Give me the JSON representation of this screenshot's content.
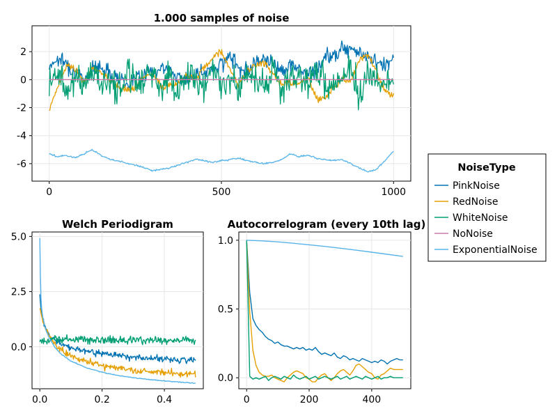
{
  "colors": {
    "PinkNoise": "#0072b2",
    "RedNoise": "#e69f00",
    "WhiteNoise": "#009e73",
    "NoNoise": "#cc79a7",
    "ExponentialNoise": "#56b4e9"
  },
  "legend": {
    "title": "NoiseType",
    "entries": [
      "PinkNoise",
      "RedNoise",
      "WhiteNoise",
      "NoNoise",
      "ExponentialNoise"
    ]
  },
  "chart_data": [
    {
      "type": "line",
      "title": "1.000 samples of noise",
      "xlabel": "",
      "ylabel": "",
      "xlim": [
        -50,
        1050
      ],
      "ylim": [
        -7.25,
        3.85
      ],
      "xticks": [
        0,
        500,
        1000
      ],
      "xtick_labels": [
        "0",
        "500",
        "1000"
      ],
      "yticks": [
        -6,
        -4,
        -2,
        0,
        2
      ],
      "ytick_labels": [
        "-6",
        "-4",
        "-2",
        "0",
        "2"
      ],
      "grid": true,
      "series": [
        {
          "name": "PinkNoise",
          "x_step": 25,
          "values": [
            1.0,
            1.5,
            1.2,
            0.5,
            0.0,
            0.8,
            0.9,
            0.6,
            0.2,
            -0.3,
            0.1,
            0.4,
            0.6,
            0.8,
            0.7,
            0.2,
            0.0,
            0.3,
            0.5,
            0.8,
            1.2,
            1.6,
            1.0,
            0.6,
            1.4,
            1.5,
            1.2,
            0.7,
            1.0,
            0.8,
            0.4,
            0.6,
            1.6,
            1.8,
            2.2,
            2.4,
            2.0,
            1.5,
            1.3,
            1.0,
            1.5
          ]
        },
        {
          "name": "RedNoise",
          "x_step": 25,
          "values": [
            -2.2,
            -0.5,
            1.0,
            0.8,
            -0.2,
            0.8,
            0.5,
            0.0,
            -0.5,
            -0.8,
            -0.5,
            0.2,
            0.4,
            -0.6,
            -0.4,
            -0.2,
            0.3,
            0.1,
            0.8,
            1.6,
            2.0,
            0.8,
            -0.4,
            0.6,
            1.0,
            1.2,
            0.5,
            -0.4,
            -0.2,
            -0.3,
            0.2,
            -1.3,
            -1.4,
            -0.5,
            0.1,
            -0.2,
            1.4,
            1.8,
            0.6,
            -0.8,
            -1.2
          ]
        },
        {
          "name": "WhiteNoise",
          "x_step": 25,
          "values": [
            0.0,
            0.6,
            -0.8,
            0.3,
            -0.4,
            0.9,
            -0.6,
            0.2,
            -1.0,
            0.5,
            0.0,
            -0.3,
            0.7,
            -0.5,
            0.2,
            -0.8,
            0.4,
            0.1,
            -0.6,
            0.8,
            -0.2,
            0.3,
            -0.7,
            0.5,
            0.0,
            -0.4,
            0.6,
            -0.9,
            0.2,
            0.4,
            -0.3,
            0.7,
            -0.5,
            0.1,
            -0.2,
            0.6,
            -0.8,
            0.3,
            0.0,
            -0.4,
            0.2
          ]
        },
        {
          "name": "NoNoise",
          "x_step": 1000,
          "values": [
            0,
            0
          ]
        },
        {
          "name": "ExponentialNoise",
          "x_step": 25,
          "values": [
            -5.3,
            -5.5,
            -5.4,
            -5.6,
            -5.3,
            -5.0,
            -5.4,
            -5.7,
            -5.8,
            -6.0,
            -6.1,
            -6.3,
            -6.5,
            -6.4,
            -6.3,
            -6.1,
            -5.9,
            -5.7,
            -5.8,
            -5.9,
            -5.8,
            -5.7,
            -5.6,
            -5.8,
            -5.9,
            -6.0,
            -5.9,
            -5.7,
            -5.3,
            -5.5,
            -5.4,
            -5.6,
            -5.7,
            -5.8,
            -5.7,
            -6.0,
            -6.3,
            -6.6,
            -6.4,
            -5.8,
            -5.1
          ]
        }
      ]
    },
    {
      "type": "line",
      "title": "Welch Periodigram",
      "xlabel": "",
      "ylabel": "",
      "xlim": [
        -0.025,
        0.525
      ],
      "ylim": [
        -1.9,
        5.2
      ],
      "xticks": [
        0.0,
        0.2,
        0.4
      ],
      "xtick_labels": [
        "0.0",
        "0.2",
        "0.4"
      ],
      "yticks": [
        0.0,
        2.5,
        5.0
      ],
      "ytick_labels": [
        "0.0",
        "2.5",
        "5.0"
      ],
      "grid": true,
      "series": [
        {
          "name": "PinkNoise",
          "x": [
            0.0,
            0.005,
            0.01,
            0.02,
            0.03,
            0.05,
            0.07,
            0.1,
            0.15,
            0.2,
            0.25,
            0.3,
            0.35,
            0.4,
            0.45,
            0.5
          ],
          "values": [
            2.3,
            1.6,
            1.2,
            0.8,
            0.5,
            0.3,
            0.1,
            -0.05,
            -0.2,
            -0.3,
            -0.38,
            -0.44,
            -0.5,
            -0.55,
            -0.58,
            -0.6
          ]
        },
        {
          "name": "RedNoise",
          "x": [
            0.0,
            0.005,
            0.01,
            0.02,
            0.03,
            0.05,
            0.07,
            0.1,
            0.15,
            0.2,
            0.25,
            0.3,
            0.35,
            0.4,
            0.45,
            0.5
          ],
          "values": [
            1.8,
            1.4,
            1.1,
            0.8,
            0.5,
            0.1,
            -0.15,
            -0.4,
            -0.65,
            -0.85,
            -0.95,
            -1.05,
            -1.12,
            -1.18,
            -1.22,
            -1.25
          ]
        },
        {
          "name": "WhiteNoise",
          "x": [
            0.0,
            0.05,
            0.1,
            0.15,
            0.2,
            0.25,
            0.3,
            0.35,
            0.4,
            0.45,
            0.5
          ],
          "values": [
            0.3,
            0.35,
            0.3,
            0.32,
            0.28,
            0.33,
            0.3,
            0.31,
            0.29,
            0.3,
            0.3
          ]
        },
        {
          "name": "NoNoise",
          "x": [],
          "values": []
        },
        {
          "name": "ExponentialNoise",
          "x": [
            0.0,
            0.003,
            0.006,
            0.01,
            0.02,
            0.03,
            0.05,
            0.07,
            0.1,
            0.15,
            0.2,
            0.25,
            0.3,
            0.35,
            0.4,
            0.45,
            0.5
          ],
          "values": [
            4.9,
            2.4,
            1.7,
            1.3,
            0.75,
            0.4,
            -0.05,
            -0.35,
            -0.65,
            -0.95,
            -1.15,
            -1.3,
            -1.4,
            -1.48,
            -1.55,
            -1.6,
            -1.65
          ]
        }
      ]
    },
    {
      "type": "line",
      "title": "Autocorrelogram (every 10th lag)",
      "xlabel": "",
      "ylabel": "",
      "xlim": [
        -25,
        525
      ],
      "ylim": [
        -0.08,
        1.06
      ],
      "xticks": [
        0,
        200,
        400
      ],
      "xtick_labels": [
        "0",
        "200",
        "400"
      ],
      "yticks": [
        0.0,
        0.5,
        1.0
      ],
      "ytick_labels": [
        "0.0",
        "0.5",
        "1.0"
      ],
      "grid": true,
      "series": [
        {
          "name": "PinkNoise",
          "x": [
            0,
            10,
            20,
            30,
            40,
            50,
            60,
            70,
            80,
            90,
            100,
            110,
            120,
            130,
            140,
            150,
            160,
            170,
            180,
            190,
            200,
            210,
            220,
            230,
            240,
            250,
            260,
            270,
            280,
            290,
            300,
            310,
            320,
            330,
            340,
            350,
            360,
            370,
            380,
            390,
            400,
            410,
            420,
            430,
            440,
            450,
            460,
            470,
            480,
            490,
            500
          ],
          "values": [
            1.0,
            0.62,
            0.43,
            0.38,
            0.35,
            0.33,
            0.3,
            0.28,
            0.27,
            0.25,
            0.26,
            0.24,
            0.23,
            0.23,
            0.22,
            0.21,
            0.22,
            0.21,
            0.22,
            0.2,
            0.21,
            0.2,
            0.22,
            0.19,
            0.17,
            0.18,
            0.17,
            0.16,
            0.18,
            0.15,
            0.14,
            0.16,
            0.15,
            0.13,
            0.14,
            0.13,
            0.12,
            0.14,
            0.13,
            0.12,
            0.11,
            0.12,
            0.11,
            0.13,
            0.12,
            0.1,
            0.12,
            0.13,
            0.14,
            0.13,
            0.13
          ]
        },
        {
          "name": "RedNoise",
          "x": [
            0,
            10,
            20,
            30,
            40,
            50,
            60,
            70,
            80,
            90,
            100,
            110,
            120,
            130,
            140,
            150,
            160,
            170,
            180,
            190,
            200,
            210,
            220,
            230,
            240,
            250,
            260,
            270,
            280,
            290,
            300,
            310,
            320,
            330,
            340,
            350,
            360,
            370,
            380,
            390,
            400,
            410,
            420,
            430,
            440,
            450,
            460,
            470,
            480,
            490,
            500
          ],
          "values": [
            1.0,
            0.48,
            0.2,
            0.09,
            0.04,
            0.02,
            0.01,
            0.01,
            0.02,
            0.0,
            -0.01,
            -0.02,
            -0.03,
            0.0,
            0.02,
            0.04,
            0.05,
            0.04,
            0.03,
            0.0,
            -0.01,
            -0.03,
            -0.03,
            0.0,
            0.02,
            0.03,
            0.0,
            -0.02,
            0.0,
            0.03,
            0.05,
            0.06,
            0.04,
            0.02,
            0.05,
            0.09,
            0.1,
            0.08,
            0.06,
            0.04,
            0.03,
            0.0,
            -0.01,
            0.02,
            0.03,
            0.05,
            0.07,
            0.06,
            0.06,
            0.06,
            0.06
          ]
        },
        {
          "name": "WhiteNoise",
          "x": [
            0,
            10,
            20,
            30,
            40,
            50,
            60,
            70,
            80,
            90,
            100,
            110,
            120,
            130,
            140,
            150,
            160,
            170,
            180,
            190,
            200,
            210,
            220,
            230,
            240,
            250,
            260,
            270,
            280,
            290,
            300,
            310,
            320,
            330,
            340,
            350,
            360,
            370,
            380,
            390,
            400,
            410,
            420,
            430,
            440,
            450,
            460,
            470,
            480,
            490,
            500
          ],
          "values": [
            1.0,
            0.01,
            -0.01,
            0.0,
            -0.01,
            0.0,
            0.01,
            -0.02,
            0.0,
            0.01,
            0.0,
            -0.01,
            0.01,
            0.0,
            -0.01,
            0.02,
            0.0,
            -0.01,
            0.0,
            0.01,
            -0.01,
            0.0,
            0.01,
            -0.01,
            0.0,
            0.01,
            0.0,
            -0.01,
            0.0,
            0.01,
            -0.01,
            0.0,
            0.01,
            -0.01,
            0.0,
            0.01,
            0.0,
            -0.01,
            0.01,
            0.0,
            -0.01,
            0.0,
            0.01,
            -0.01,
            0.0,
            0.0,
            0.01,
            0.0,
            0.0,
            0.0,
            0.0
          ]
        },
        {
          "name": "NoNoise",
          "x": [],
          "values": []
        },
        {
          "name": "ExponentialNoise",
          "x": [
            0,
            50,
            100,
            150,
            200,
            250,
            300,
            350,
            400,
            450,
            500
          ],
          "values": [
            1.0,
            0.995,
            0.988,
            0.978,
            0.967,
            0.955,
            0.942,
            0.928,
            0.913,
            0.898,
            0.882
          ]
        }
      ]
    }
  ]
}
